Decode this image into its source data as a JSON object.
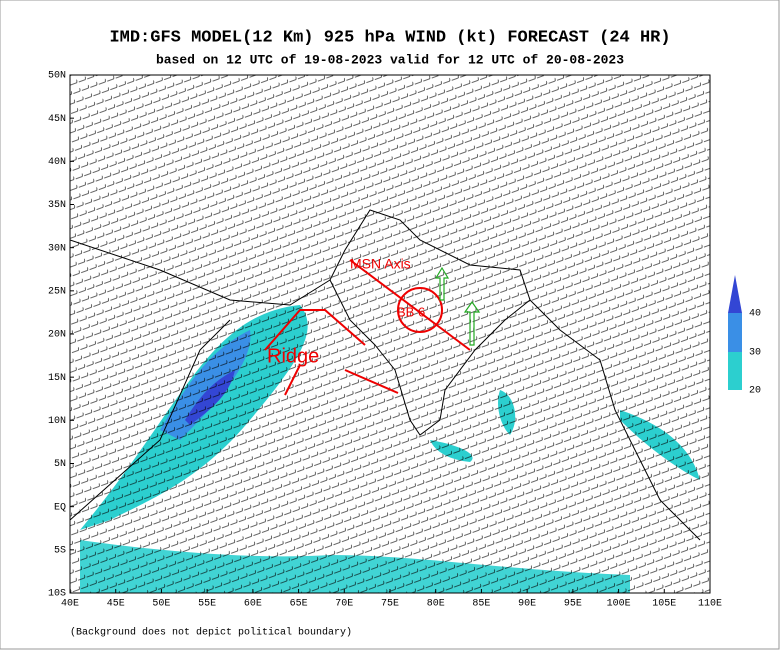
{
  "header": {
    "title": "IMD:GFS MODEL(12 Km) 925 hPa WIND (kt) FORECAST (24 HR)",
    "subtitle": "based on 12 UTC of 19-08-2023 valid for 12 UTC of 20-08-2023"
  },
  "map": {
    "lat_labels": [
      "50N",
      "45N",
      "40N",
      "35N",
      "30N",
      "25N",
      "20N",
      "15N",
      "10N",
      "5N",
      "EQ",
      "5S",
      "10S"
    ],
    "lon_labels": [
      "40E",
      "45E",
      "50E",
      "55E",
      "60E",
      "65E",
      "70E",
      "75E",
      "80E",
      "85E",
      "90E",
      "95E",
      "100E",
      "105E",
      "110E"
    ]
  },
  "legend": {
    "labels": [
      "40",
      "30",
      "20"
    ]
  },
  "annotations": {
    "axis": "MSN Axis",
    "ridge": "Ridge",
    "low": "BB 6"
  },
  "footnote": "(Background does not depict political boundary)"
}
